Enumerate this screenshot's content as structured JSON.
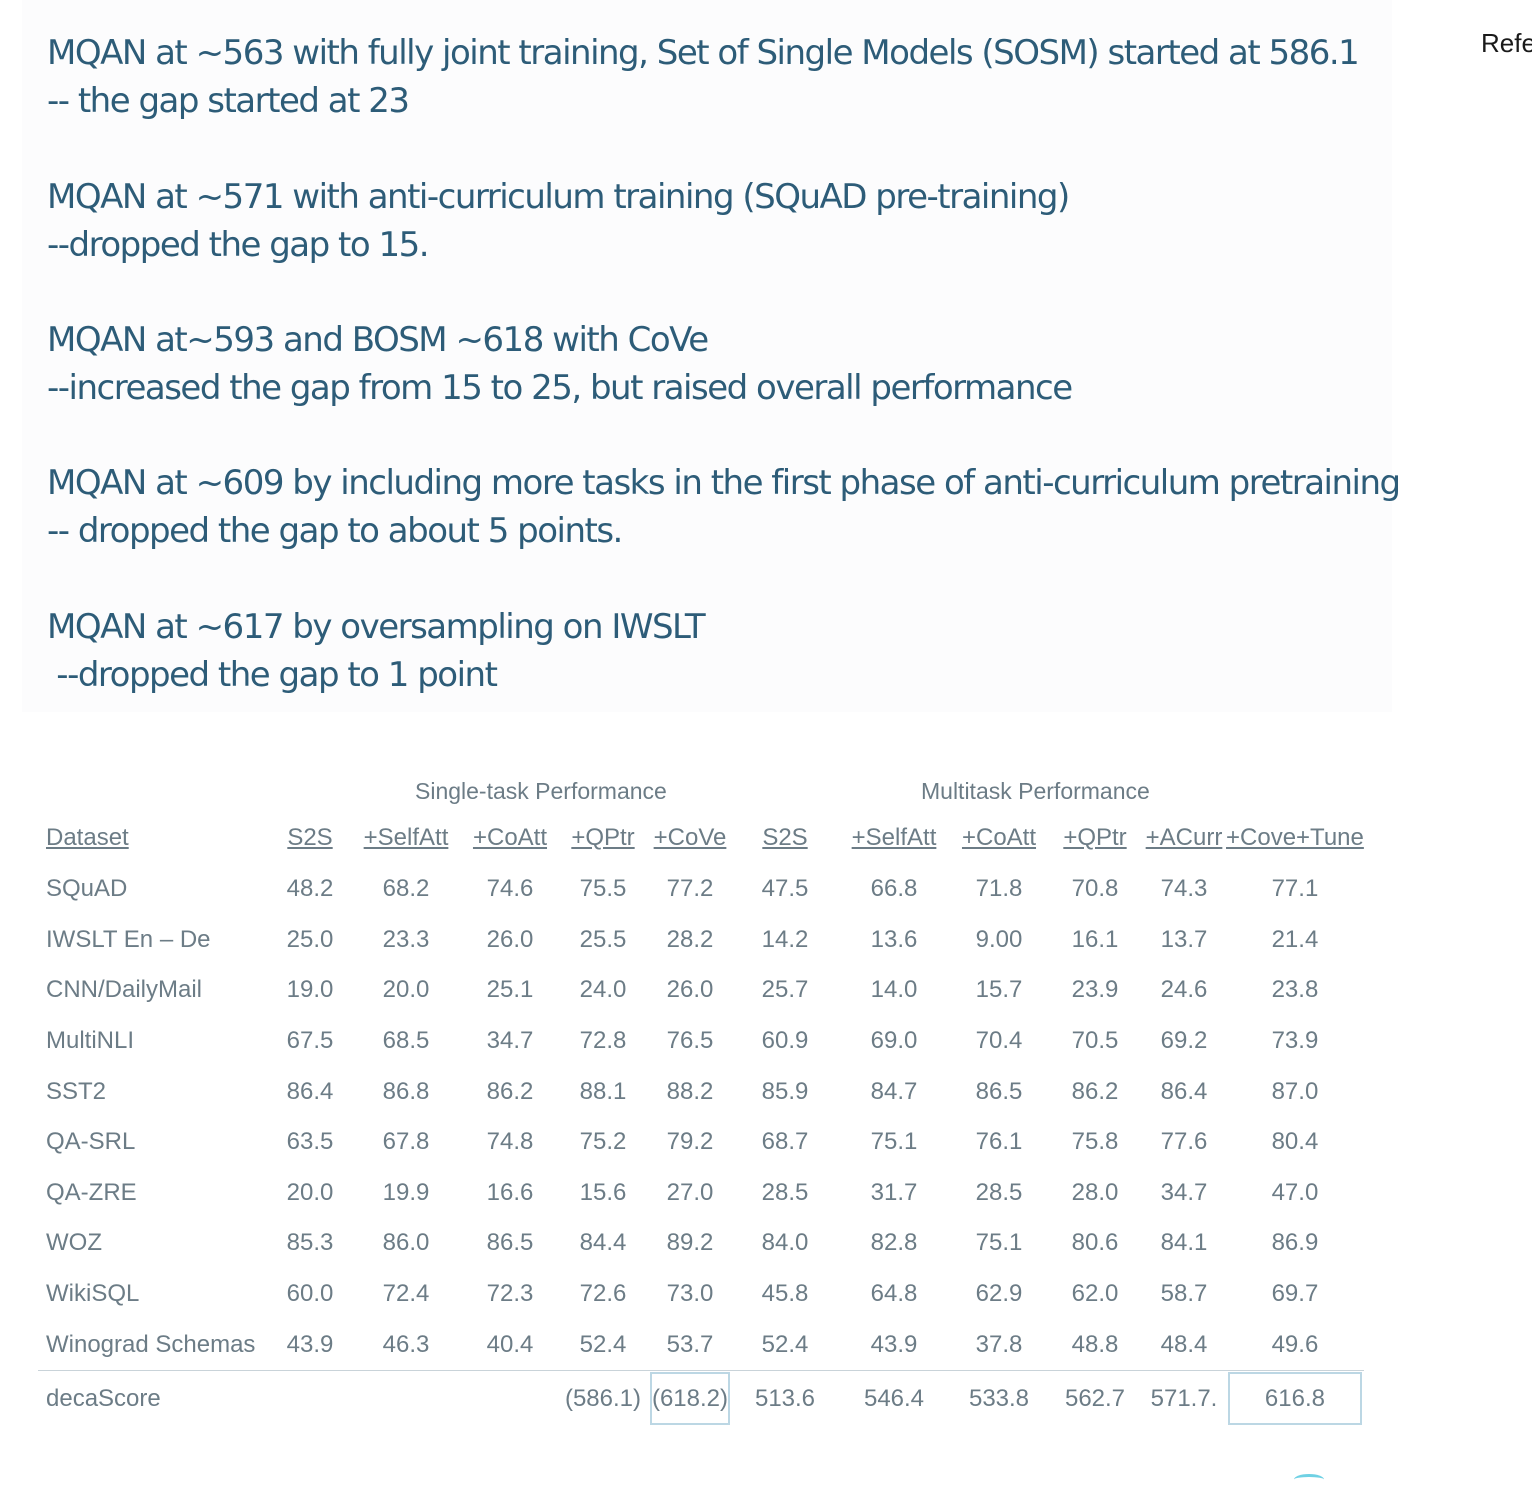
{
  "notes": [
    {
      "line1": "MQAN at ~563 with fully joint training, Set of Single Models (SOSM) started at 586.1",
      "line2": "-- the gap started at 23"
    },
    {
      "line1": "MQAN at ~571 with anti-curriculum training (SQuAD pre-training)",
      "line2": "--dropped the gap to 15."
    },
    {
      "line1": "MQAN at~593 and BOSM ~618 with CoVe",
      "line2": "--increased the gap from 15 to 25, but raised overall performance"
    },
    {
      "line1": "MQAN at ~609 by including more tasks in the first phase of anti-curriculum pretraining",
      "line2": "-- dropped the gap to about 5 points."
    },
    {
      "line1": "MQAN at ~617 by oversampling on IWSLT",
      "line2": " --dropped the gap to 1 point"
    }
  ],
  "side_panel": {
    "text": "Refe"
  },
  "table": {
    "group_headers": {
      "single": "Single-task Performance",
      "multi": "Multitask Performance"
    },
    "columns": [
      "Dataset",
      "S2S",
      "+SelfAtt",
      "+CoAtt",
      "+QPtr",
      "+CoVe",
      "S2S",
      "+SelfAtt",
      "+CoAtt",
      "+QPtr",
      "+ACurr",
      "+Cove+Tune"
    ],
    "rows": [
      {
        "name": "SQuAD",
        "values": [
          "48.2",
          "68.2",
          "74.6",
          "75.5",
          "77.2",
          "47.5",
          "66.8",
          "71.8",
          "70.8",
          "74.3",
          "77.1"
        ]
      },
      {
        "name": "IWSLT En – De",
        "values": [
          "25.0",
          "23.3",
          "26.0",
          "25.5",
          "28.2",
          "14.2",
          "13.6",
          "9.00",
          "16.1",
          "13.7",
          "21.4"
        ]
      },
      {
        "name": "CNN/DailyMail",
        "values": [
          "19.0",
          "20.0",
          "25.1",
          "24.0",
          "26.0",
          "25.7",
          "14.0",
          "15.7",
          "23.9",
          "24.6",
          "23.8"
        ]
      },
      {
        "name": "MultiNLI",
        "values": [
          "67.5",
          "68.5",
          "34.7",
          "72.8",
          "76.5",
          "60.9",
          "69.0",
          "70.4",
          "70.5",
          "69.2",
          "73.9"
        ]
      },
      {
        "name": "SST2",
        "values": [
          "86.4",
          "86.8",
          "86.2",
          "88.1",
          "88.2",
          "85.9",
          "84.7",
          "86.5",
          "86.2",
          "86.4",
          "87.0"
        ]
      },
      {
        "name": "QA-SRL",
        "values": [
          "63.5",
          "67.8",
          "74.8",
          "75.2",
          "79.2",
          "68.7",
          "75.1",
          "76.1",
          "75.8",
          "77.6",
          "80.4"
        ]
      },
      {
        "name": "QA-ZRE",
        "values": [
          "20.0",
          "19.9",
          "16.6",
          "15.6",
          "27.0",
          "28.5",
          "31.7",
          "28.5",
          "28.0",
          "34.7",
          "47.0"
        ]
      },
      {
        "name": "WOZ",
        "values": [
          "85.3",
          "86.0",
          "86.5",
          "84.4",
          "89.2",
          "84.0",
          "82.8",
          "75.1",
          "80.6",
          "84.1",
          "86.9"
        ]
      },
      {
        "name": "WikiSQL",
        "values": [
          "60.0",
          "72.4",
          "72.3",
          "72.6",
          "73.0",
          "45.8",
          "64.8",
          "62.9",
          "62.0",
          "58.7",
          "69.7"
        ]
      },
      {
        "name": "Winograd Schemas",
        "values": [
          "43.9",
          "46.3",
          "40.4",
          "52.4",
          "53.7",
          "52.4",
          "43.9",
          "37.8",
          "48.8",
          "48.4",
          "49.6"
        ]
      }
    ],
    "score_row": {
      "name": "decaScore",
      "values": [
        "",
        "",
        "",
        "(586.1)",
        "(618.2)",
        "513.6",
        "546.4",
        "533.8",
        "562.7",
        "571.7.",
        "616.8"
      ]
    }
  }
}
